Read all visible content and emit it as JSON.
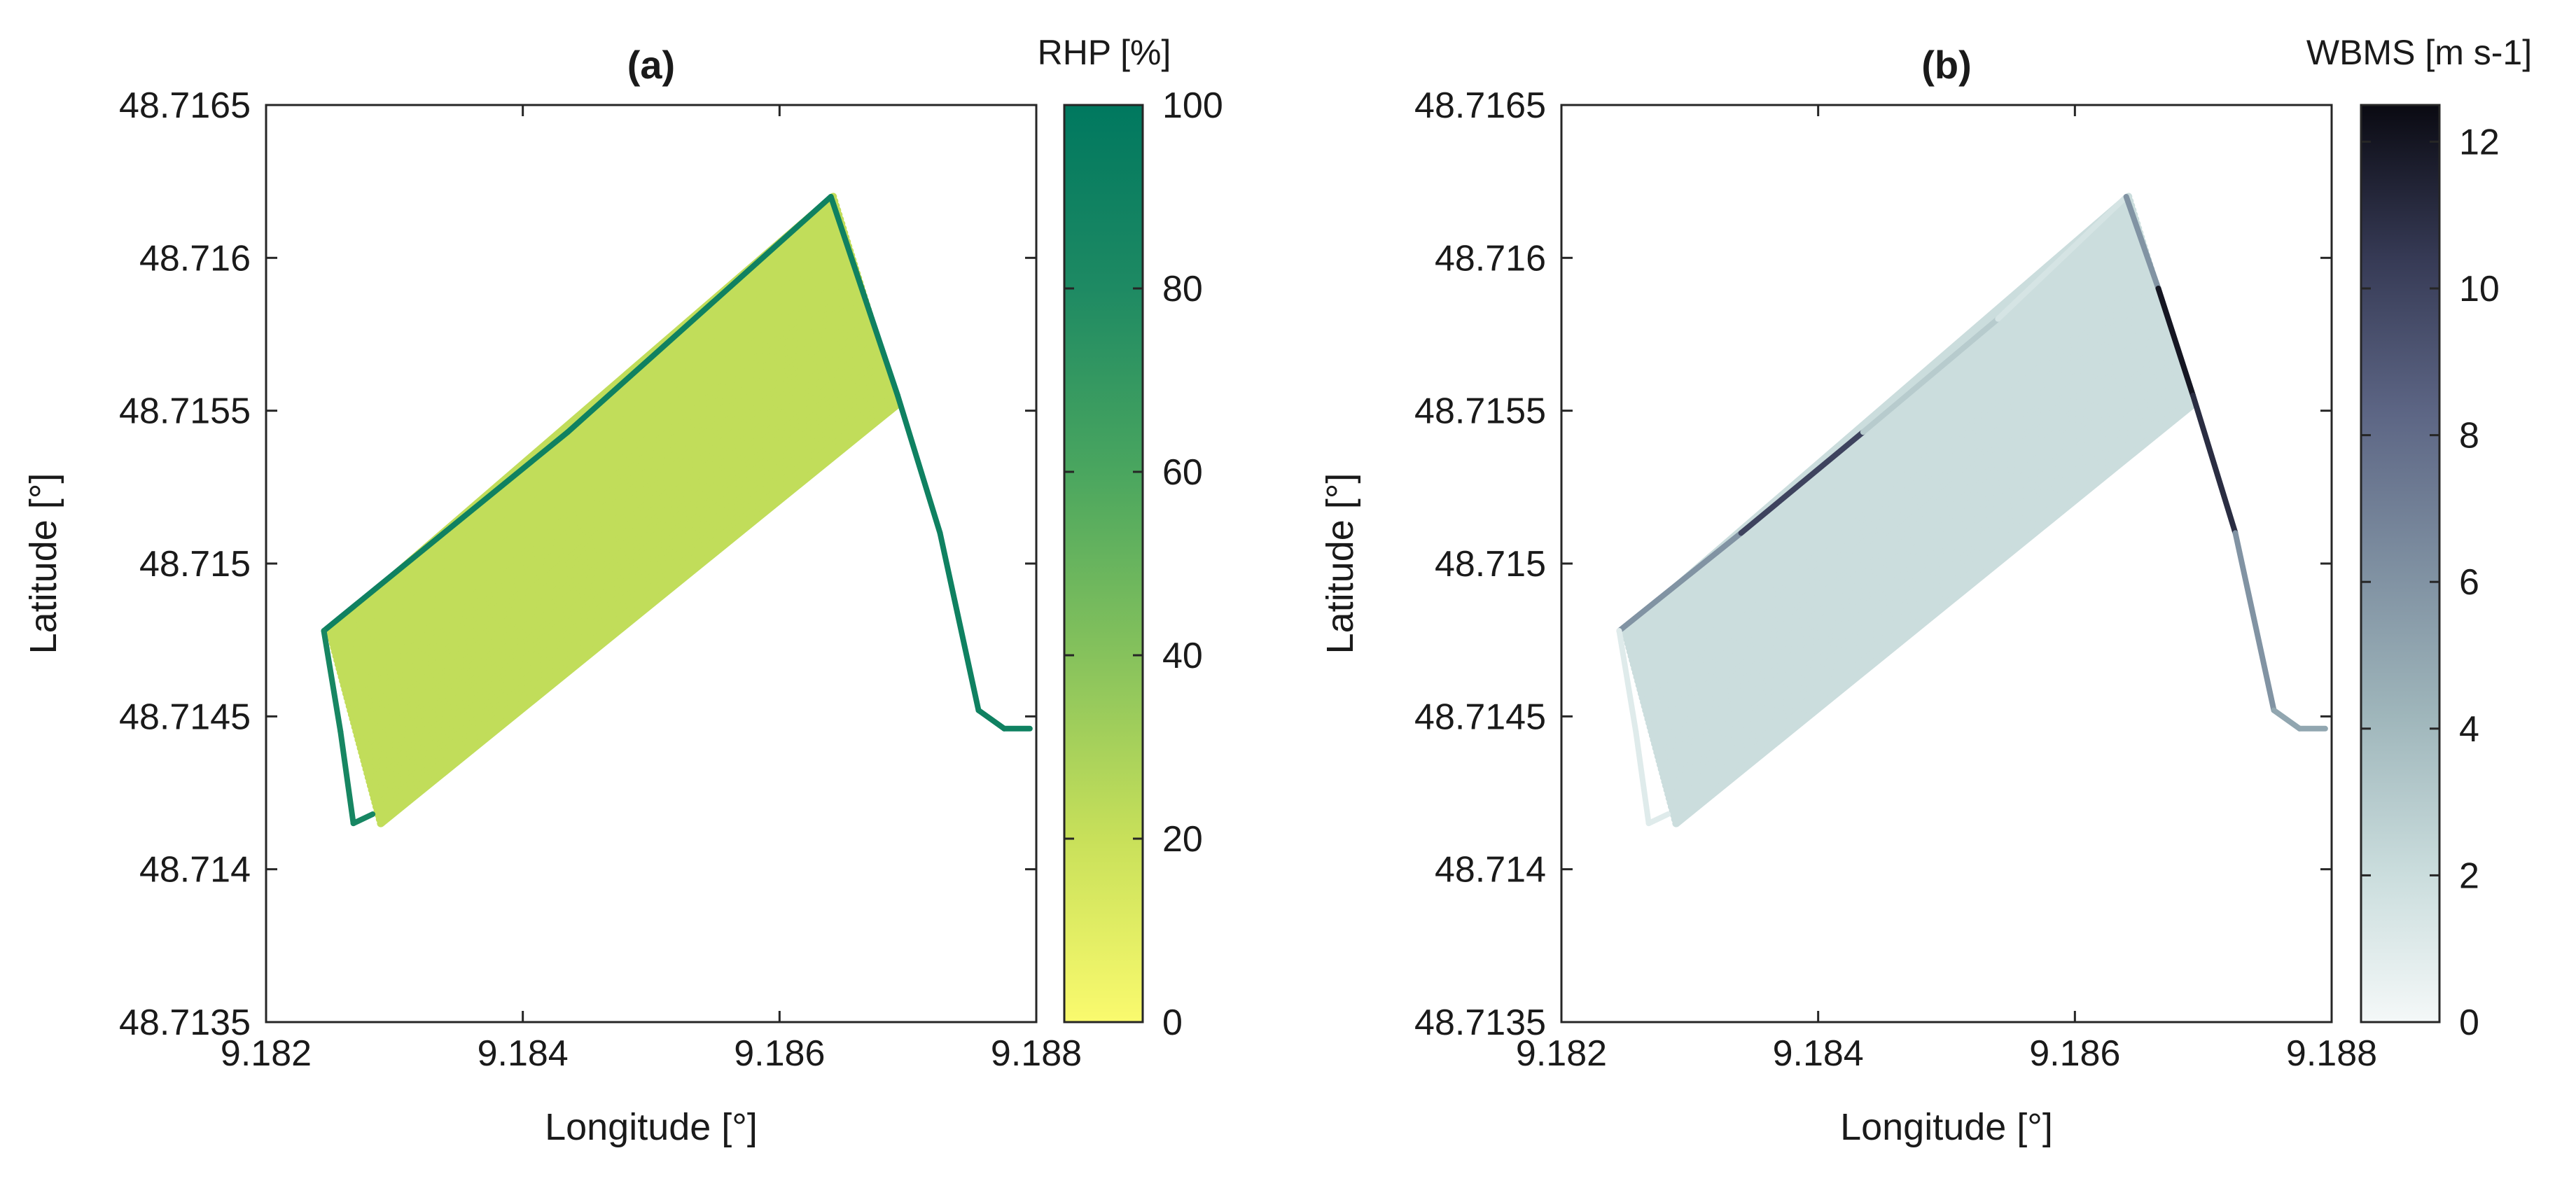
{
  "chart_data": [
    {
      "type": "scatter",
      "panel": "a",
      "title": "(a)",
      "xlabel": "Longitude [°]",
      "ylabel": "Latitude [°]",
      "xlim": [
        9.182,
        9.188
      ],
      "ylim": [
        48.7135,
        48.7165
      ],
      "xticks": [
        "9.182",
        "9.184",
        "9.186",
        "9.188"
      ],
      "yticks": [
        "48.7165",
        "48.716",
        "48.7155",
        "48.715",
        "48.7145",
        "48.714",
        "48.7135"
      ],
      "grid": false,
      "colorbar": {
        "title": "RHP [%]",
        "range": [
          0,
          100
        ],
        "ticks": [
          "0",
          "20",
          "40",
          "60",
          "80",
          "100"
        ],
        "colors": [
          "#fafa6e",
          "#c8e05a",
          "#86c25c",
          "#4aa65f",
          "#1e8a63",
          "#00785f"
        ]
      },
      "field": {
        "corners": [
          [
            9.18245,
            48.71478
          ],
          [
            9.18645,
            48.7162
          ],
          [
            9.18695,
            48.71552
          ],
          [
            9.18285,
            48.71415
          ]
        ],
        "interior_value": 22,
        "stripe_count": 46
      },
      "track": {
        "points": [
          [
            9.18245,
            48.71478
          ],
          [
            9.18435,
            48.71543
          ],
          [
            9.1864,
            48.7162
          ],
          [
            9.18692,
            48.71555
          ],
          [
            9.18725,
            48.7151
          ],
          [
            9.18755,
            48.71452
          ],
          [
            9.18775,
            48.71446
          ],
          [
            9.18795,
            48.71446
          ]
        ],
        "value": 90
      },
      "headland": {
        "points": [
          [
            9.18245,
            48.71478
          ],
          [
            9.18258,
            48.71445
          ],
          [
            9.18268,
            48.71415
          ],
          [
            9.18283,
            48.71418
          ]
        ],
        "value": 85
      }
    },
    {
      "type": "scatter",
      "panel": "b",
      "title": "(b)",
      "xlabel": "Longitude [°]",
      "ylabel": "Latitude [°]",
      "xlim": [
        9.182,
        9.188
      ],
      "ylim": [
        48.7135,
        48.7165
      ],
      "xticks": [
        "9.182",
        "9.184",
        "9.186",
        "9.188"
      ],
      "yticks": [
        "48.7165",
        "48.716",
        "48.7155",
        "48.715",
        "48.7145",
        "48.714",
        "48.7135"
      ],
      "grid": false,
      "colorbar": {
        "title": "WBMS [m s-1]",
        "range": [
          0,
          12.5
        ],
        "ticks": [
          "0",
          "2",
          "4",
          "6",
          "8",
          "10",
          "12"
        ],
        "colors": [
          "#f4f8f8",
          "#c9dcdc",
          "#9fb6bb",
          "#7d8ea0",
          "#5c6584",
          "#363a55",
          "#0a0a12"
        ]
      },
      "field": {
        "corners": [
          [
            9.18245,
            48.71478
          ],
          [
            9.18645,
            48.7162
          ],
          [
            9.18695,
            48.71552
          ],
          [
            9.18285,
            48.71415
          ]
        ],
        "interior_value": 2,
        "stripe_count": 46
      },
      "track": {
        "points": [
          [
            9.18245,
            48.71478
          ],
          [
            9.1834,
            48.7151
          ],
          [
            9.18435,
            48.71543
          ],
          [
            9.1854,
            48.7158
          ],
          [
            9.1864,
            48.7162
          ],
          [
            9.18665,
            48.7159
          ],
          [
            9.18692,
            48.71555
          ],
          [
            9.18725,
            48.7151
          ],
          [
            9.18755,
            48.71452
          ],
          [
            9.18775,
            48.71446
          ],
          [
            9.18795,
            48.71446
          ]
        ],
        "segment_values": [
          6,
          10,
          3,
          1.5,
          6,
          12,
          11,
          6,
          5,
          5
        ]
      },
      "headland": {
        "points": [
          [
            9.18245,
            48.71478
          ],
          [
            9.18258,
            48.71445
          ],
          [
            9.18268,
            48.71415
          ],
          [
            9.18283,
            48.71418
          ]
        ],
        "value": 1
      }
    }
  ]
}
